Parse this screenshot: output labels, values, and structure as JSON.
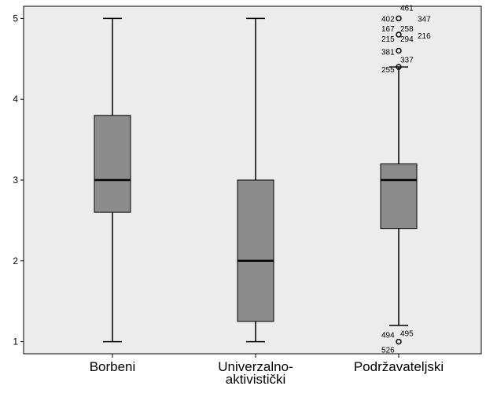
{
  "chart_data": {
    "type": "boxplot",
    "title": "",
    "xlabel": "",
    "ylabel": "",
    "ylim": [
      0.85,
      5.15
    ],
    "yticks": [
      "1",
      "2",
      "3",
      "4",
      "5"
    ],
    "categories": [
      "Borbeni",
      "Univerzalno-\naktivistički",
      "Podržavateljski"
    ],
    "category_lines": [
      [
        "Borbeni"
      ],
      [
        "Univerzalno-",
        "aktivistički"
      ],
      [
        "Podržavateljski"
      ]
    ],
    "boxes": [
      {
        "name": "Borbeni",
        "whisker_low": 1,
        "q1": 2.6,
        "median": 3,
        "q3": 3.8,
        "whisker_high": 5,
        "outliers": []
      },
      {
        "name": "Univerzalno-aktivistički",
        "whisker_low": 1,
        "q1": 1.25,
        "median": 2,
        "q3": 3,
        "whisker_high": 5,
        "outliers": []
      },
      {
        "name": "Podržavateljski",
        "whisker_low": 1.2,
        "q1": 2.4,
        "median": 3,
        "q3": 3.2,
        "whisker_high": 4.4,
        "outliers": [
          {
            "y": 5.0,
            "labels": [
              "461",
              "402",
              "347"
            ]
          },
          {
            "y": 4.8,
            "labels": [
              "167",
              "258",
              "215",
              "294",
              "216"
            ]
          },
          {
            "y": 4.6,
            "labels": [
              "381",
              "337"
            ]
          },
          {
            "y": 4.4,
            "labels": [
              "255"
            ]
          },
          {
            "y": 1.0,
            "labels": [
              "494",
              "495",
              "526"
            ]
          }
        ]
      }
    ],
    "grid": false,
    "colors": {
      "plot_background": "#ececec",
      "box_fill": "#8c8c8c",
      "stroke": "#000000",
      "page_background": "#ffffff"
    }
  }
}
